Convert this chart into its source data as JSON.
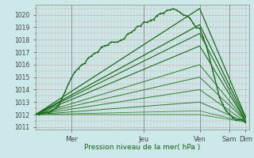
{
  "title": "Pression niveau de la mer( hPa )",
  "ylim": [
    1010.8,
    1020.8
  ],
  "xlim": [
    0,
    130
  ],
  "background_color": "#cce8e8",
  "x_ticks": [
    22,
    66,
    100,
    118,
    128
  ],
  "x_tick_labels": [
    "Mer",
    "Jeu",
    "Ven",
    "Sam",
    "Dim"
  ],
  "day_lines": [
    22,
    66,
    100,
    118
  ],
  "yticks": [
    1011,
    1012,
    1013,
    1014,
    1015,
    1016,
    1017,
    1018,
    1019,
    1020
  ],
  "main_line": {
    "x": [
      0,
      2,
      4,
      6,
      8,
      10,
      12,
      14,
      16,
      18,
      20,
      22,
      24,
      26,
      28,
      30,
      32,
      34,
      36,
      38,
      40,
      42,
      44,
      46,
      48,
      50,
      52,
      54,
      56,
      58,
      60,
      62,
      64,
      66,
      68,
      70,
      72,
      74,
      76,
      78,
      80,
      82,
      84,
      86,
      88,
      90,
      92,
      94,
      96,
      98,
      100,
      102,
      104,
      106,
      108,
      110,
      112,
      114,
      116,
      118,
      120,
      122,
      124,
      126,
      128
    ],
    "y": [
      1012.0,
      1012.05,
      1012.1,
      1012.15,
      1012.2,
      1012.3,
      1012.5,
      1012.8,
      1013.2,
      1013.8,
      1014.5,
      1015.0,
      1015.4,
      1015.7,
      1016.0,
      1016.2,
      1016.5,
      1016.7,
      1016.9,
      1017.1,
      1017.3,
      1017.5,
      1017.6,
      1017.7,
      1017.8,
      1017.9,
      1018.0,
      1018.2,
      1018.4,
      1018.6,
      1018.8,
      1019.0,
      1019.2,
      1019.4,
      1019.5,
      1019.6,
      1019.7,
      1019.85,
      1020.0,
      1020.15,
      1020.3,
      1020.4,
      1020.45,
      1020.4,
      1020.3,
      1020.1,
      1019.9,
      1019.6,
      1019.3,
      1019.0,
      1018.8,
      1018.2,
      1017.5,
      1016.5,
      1015.5,
      1014.5,
      1013.5,
      1012.8,
      1012.3,
      1012.0,
      1011.8,
      1011.7,
      1011.6,
      1011.5,
      1011.4
    ],
    "color": "#1a6b1a",
    "linewidth": 1.0
  },
  "ensemble_lines": [
    {
      "x": [
        0,
        100,
        128
      ],
      "y": [
        1012.0,
        1020.5,
        1011.8
      ],
      "color": "#1a6b1a",
      "lw": 0.9
    },
    {
      "x": [
        0,
        100,
        128
      ],
      "y": [
        1012.0,
        1019.2,
        1011.7
      ],
      "color": "#1a6b1a",
      "lw": 0.9
    },
    {
      "x": [
        0,
        100,
        128
      ],
      "y": [
        1012.0,
        1018.5,
        1011.5
      ],
      "color": "#1a6b1a",
      "lw": 0.8
    },
    {
      "x": [
        0,
        100,
        128
      ],
      "y": [
        1012.0,
        1017.5,
        1011.5
      ],
      "color": "#1a6b1a",
      "lw": 0.8
    },
    {
      "x": [
        0,
        100,
        128
      ],
      "y": [
        1012.0,
        1016.0,
        1011.5
      ],
      "color": "#2a7a2a",
      "lw": 0.7
    },
    {
      "x": [
        0,
        100,
        128
      ],
      "y": [
        1012.0,
        1015.0,
        1011.5
      ],
      "color": "#2a7a2a",
      "lw": 0.7
    },
    {
      "x": [
        0,
        100,
        128
      ],
      "y": [
        1012.0,
        1014.0,
        1011.4
      ],
      "color": "#2a7a2a",
      "lw": 0.7
    },
    {
      "x": [
        0,
        100,
        128
      ],
      "y": [
        1012.0,
        1013.0,
        1011.4
      ],
      "color": "#2a7a2a",
      "lw": 0.7
    },
    {
      "x": [
        0,
        100,
        128
      ],
      "y": [
        1012.0,
        1012.3,
        1011.4
      ],
      "color": "#3a8a3a",
      "lw": 0.6
    },
    {
      "x": [
        0,
        100,
        128
      ],
      "y": [
        1012.0,
        1012.0,
        1011.4
      ],
      "color": "#3a8a3a",
      "lw": 0.6
    }
  ],
  "noise_seed": 7,
  "noise_scale": 0.06
}
